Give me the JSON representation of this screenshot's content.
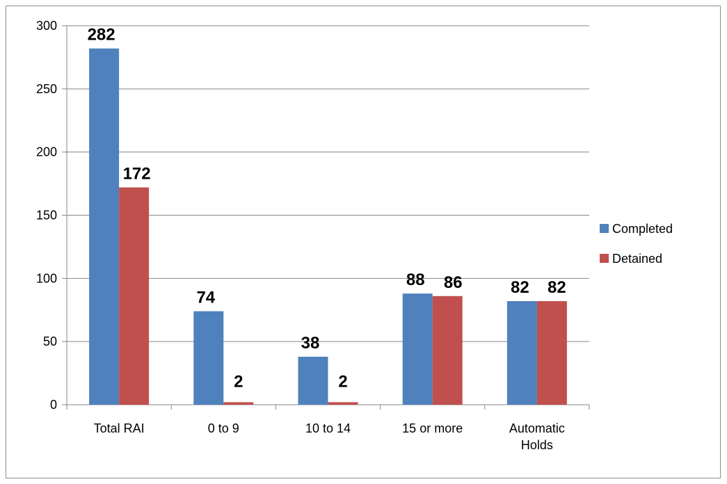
{
  "chart_data": {
    "type": "bar",
    "categories": [
      "Total RAI",
      "0 to 9",
      "10 to 14",
      "15 or more",
      "Automatic Holds"
    ],
    "series": [
      {
        "name": "Completed",
        "values": [
          282,
          74,
          38,
          88,
          82
        ],
        "color": "#4f81bd"
      },
      {
        "name": "Detained",
        "values": [
          172,
          2,
          2,
          86,
          82
        ],
        "color": "#c0504d"
      }
    ],
    "ylim": [
      0,
      300
    ],
    "yticks": [
      0,
      50,
      100,
      150,
      200,
      250,
      300
    ],
    "grid": true,
    "legend_position": "right",
    "data_labels": true
  }
}
